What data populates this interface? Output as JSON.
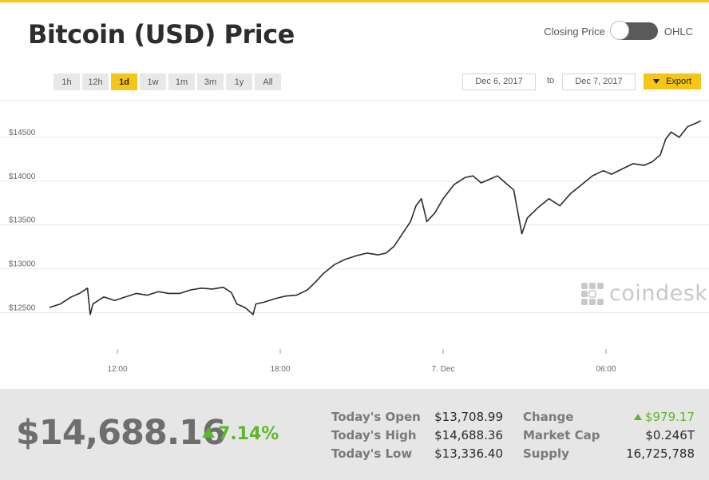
{
  "title": "Bitcoin (USD) Price",
  "toggle": {
    "left_label": "Closing Price",
    "right_label": "OHLC",
    "state": "closing"
  },
  "ranges": [
    {
      "label": "1h",
      "active": false
    },
    {
      "label": "12h",
      "active": false
    },
    {
      "label": "1d",
      "active": true
    },
    {
      "label": "1w",
      "active": false
    },
    {
      "label": "1m",
      "active": false
    },
    {
      "label": "3m",
      "active": false
    },
    {
      "label": "1y",
      "active": false
    },
    {
      "label": "All",
      "active": false
    }
  ],
  "date_range": {
    "from": "Dec 6, 2017",
    "to_label": "to",
    "to": "Dec 7, 2017"
  },
  "export_label": "Export",
  "watermark": "coindesk",
  "colors": {
    "accent": "#f5c518",
    "line": "#2b2b2b",
    "positive": "#5cb82a"
  },
  "chart_data": {
    "type": "line",
    "y_ticks": [
      {
        "value": 12500,
        "label": "$12500"
      },
      {
        "value": 13000,
        "label": "$13000"
      },
      {
        "value": 13500,
        "label": "$13500"
      },
      {
        "value": 14000,
        "label": "$14000"
      },
      {
        "value": 14500,
        "label": "$14500"
      }
    ],
    "ylim": [
      12150,
      14900
    ],
    "x_range_hours": [
      9.5,
      33.5
    ],
    "x_ticks": [
      {
        "hour": 12,
        "label": "12:00"
      },
      {
        "hour": 18,
        "label": "18:00"
      },
      {
        "hour": 24,
        "label": "7. Dec"
      },
      {
        "hour": 30,
        "label": "06:00"
      }
    ],
    "grid": true,
    "series": [
      {
        "points": [
          [
            9.5,
            12560
          ],
          [
            9.9,
            12600
          ],
          [
            10.3,
            12680
          ],
          [
            10.6,
            12720
          ],
          [
            10.9,
            12780
          ],
          [
            11.0,
            12480
          ],
          [
            11.1,
            12600
          ],
          [
            11.5,
            12680
          ],
          [
            11.9,
            12640
          ],
          [
            12.3,
            12680
          ],
          [
            12.7,
            12720
          ],
          [
            13.1,
            12700
          ],
          [
            13.5,
            12740
          ],
          [
            13.9,
            12720
          ],
          [
            14.3,
            12720
          ],
          [
            14.7,
            12760
          ],
          [
            15.1,
            12780
          ],
          [
            15.5,
            12770
          ],
          [
            15.9,
            12790
          ],
          [
            16.2,
            12730
          ],
          [
            16.4,
            12600
          ],
          [
            16.7,
            12560
          ],
          [
            17.0,
            12480
          ],
          [
            17.1,
            12600
          ],
          [
            17.4,
            12620
          ],
          [
            17.8,
            12660
          ],
          [
            18.2,
            12690
          ],
          [
            18.6,
            12700
          ],
          [
            19.0,
            12760
          ],
          [
            19.3,
            12850
          ],
          [
            19.6,
            12950
          ],
          [
            20.0,
            13050
          ],
          [
            20.4,
            13110
          ],
          [
            20.8,
            13150
          ],
          [
            21.2,
            13180
          ],
          [
            21.6,
            13160
          ],
          [
            21.9,
            13180
          ],
          [
            22.2,
            13260
          ],
          [
            22.5,
            13400
          ],
          [
            22.8,
            13540
          ],
          [
            23.0,
            13720
          ],
          [
            23.2,
            13800
          ],
          [
            23.4,
            13540
          ],
          [
            23.7,
            13640
          ],
          [
            24.0,
            13800
          ],
          [
            24.4,
            13960
          ],
          [
            24.8,
            14040
          ],
          [
            25.1,
            14060
          ],
          [
            25.4,
            13980
          ],
          [
            25.7,
            14020
          ],
          [
            26.0,
            14060
          ],
          [
            26.3,
            13980
          ],
          [
            26.6,
            13900
          ],
          [
            26.9,
            13400
          ],
          [
            27.1,
            13580
          ],
          [
            27.5,
            13700
          ],
          [
            27.9,
            13800
          ],
          [
            28.3,
            13720
          ],
          [
            28.7,
            13860
          ],
          [
            29.1,
            13960
          ],
          [
            29.5,
            14060
          ],
          [
            29.9,
            14120
          ],
          [
            30.2,
            14080
          ],
          [
            30.6,
            14140
          ],
          [
            31.0,
            14200
          ],
          [
            31.4,
            14180
          ],
          [
            31.7,
            14220
          ],
          [
            32.0,
            14300
          ],
          [
            32.2,
            14480
          ],
          [
            32.4,
            14560
          ],
          [
            32.7,
            14500
          ],
          [
            33.0,
            14620
          ],
          [
            33.3,
            14660
          ],
          [
            33.5,
            14688
          ]
        ]
      }
    ]
  },
  "summary": {
    "price": "$14,688.16",
    "change_pct": "7.14%",
    "stats": [
      {
        "label": "Today's Open",
        "value": "$13,708.99"
      },
      {
        "label": "Today's High",
        "value": "$14,688.36"
      },
      {
        "label": "Today's Low",
        "value": "$13,336.40"
      }
    ],
    "stats2": [
      {
        "label": "Change",
        "value": "$979.17"
      },
      {
        "label": "Market Cap",
        "value": "$0.246T"
      },
      {
        "label": "Supply",
        "value": "16,725,788"
      }
    ]
  }
}
